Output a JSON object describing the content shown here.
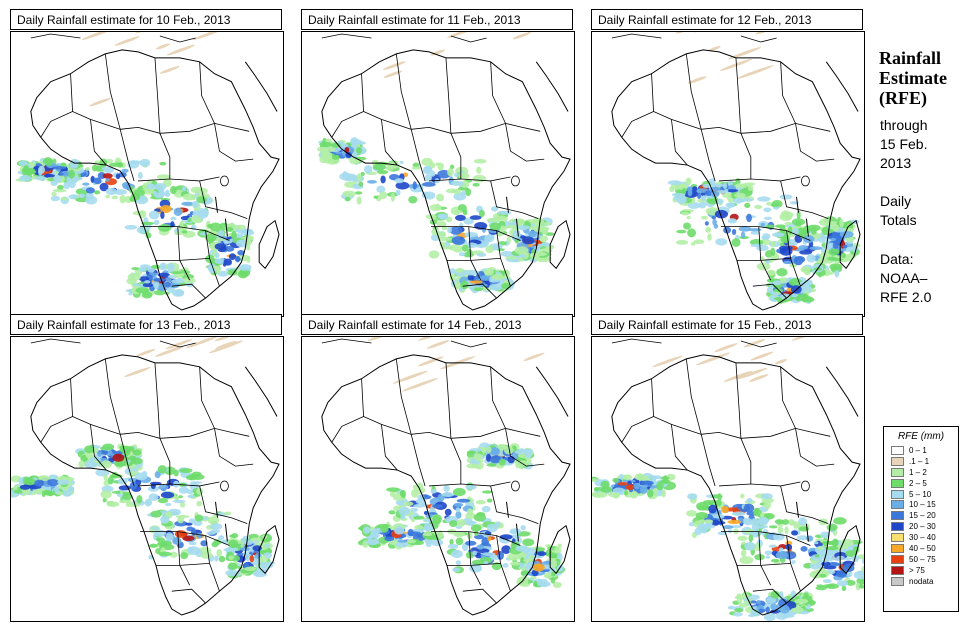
{
  "panels": [
    {
      "title": "Daily Rainfall estimate for  10 Feb., 2013",
      "day": 10
    },
    {
      "title": "Daily Rainfall estimate for  11 Feb., 2013",
      "day": 11
    },
    {
      "title": "Daily Rainfall estimate for  12 Feb., 2013",
      "day": 12
    },
    {
      "title": "Daily Rainfall estimate for  13 Feb., 2013",
      "day": 13
    },
    {
      "title": "Daily Rainfall estimate for  14 Feb., 2013",
      "day": 14
    },
    {
      "title": "Daily Rainfall estimate for  15 Feb., 2013",
      "day": 15
    }
  ],
  "sidebar": {
    "heading": [
      "Rainfall",
      "Estimate",
      "(RFE)"
    ],
    "through": "through",
    "date_line1": "15 Feb.",
    "date_line2": "2013",
    "daily": "Daily",
    "totals": "Totals",
    "data_label": "Data:",
    "source_line1": "NOAA–",
    "source_line2": "RFE 2.0"
  },
  "legend": {
    "title": "RFE (mm)",
    "items": [
      {
        "label": "0 – 1",
        "color": "#ffffff"
      },
      {
        "label": ".1 – 1",
        "color": "#e8d4b8"
      },
      {
        "label": "1 – 2",
        "color": "#b4eea6"
      },
      {
        "label": "2 – 5",
        "color": "#6edc6a"
      },
      {
        "label": "5 – 10",
        "color": "#a6dcf0"
      },
      {
        "label": "10 – 15",
        "color": "#6aaee8"
      },
      {
        "label": "15 – 20",
        "color": "#3c78dc"
      },
      {
        "label": "20 – 30",
        "color": "#1e46c8"
      },
      {
        "label": "30 – 40",
        "color": "#f8e070"
      },
      {
        "label": "40 – 50",
        "color": "#f8a828"
      },
      {
        "label": "50 – 75",
        "color": "#e84010"
      },
      {
        "label": "> 75",
        "color": "#b41414"
      },
      {
        "label": "nodata",
        "color": "#c8c8c8"
      }
    ]
  }
}
